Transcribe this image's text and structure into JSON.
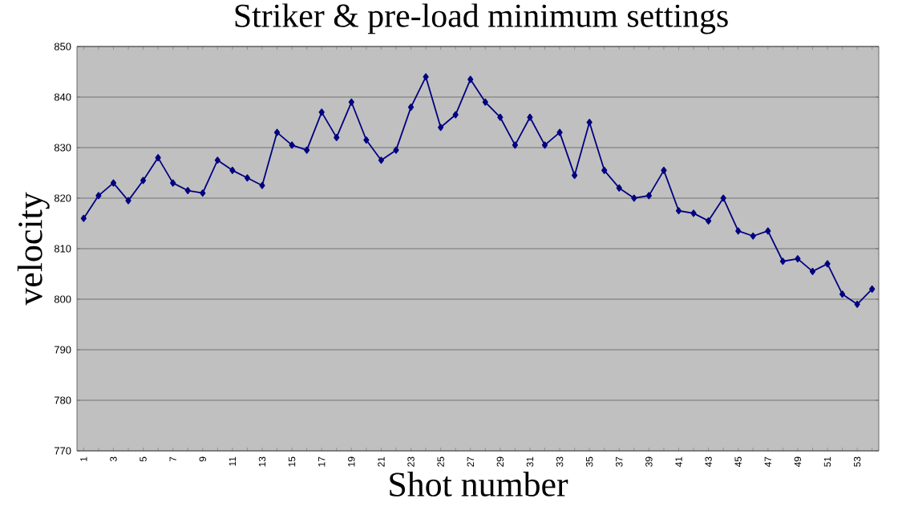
{
  "chart_data": {
    "type": "line",
    "title": "Striker & pre-load minimum settings",
    "xlabel": "Shot number",
    "ylabel": "velocity",
    "categories": [
      "1",
      null,
      "3",
      null,
      "5",
      null,
      "7",
      null,
      "9",
      null,
      "11",
      null,
      "13",
      null,
      "15",
      null,
      "17",
      null,
      "19",
      null,
      "21",
      null,
      "23",
      null,
      "25",
      null,
      "27",
      null,
      "29",
      null,
      "31",
      null,
      "33",
      null,
      "35",
      null,
      "37",
      null,
      "39",
      null,
      "41",
      null,
      "43",
      null,
      "45",
      null,
      "47",
      null,
      "49",
      null,
      "51",
      null,
      "53",
      null
    ],
    "series": [
      {
        "color": "#000080",
        "values": [
          816,
          820.5,
          823,
          819.5,
          823.5,
          828,
          823,
          821.5,
          821,
          827.5,
          825.5,
          824,
          822.5,
          833,
          830.5,
          829.5,
          837,
          832,
          839,
          831.5,
          827.5,
          829.5,
          838,
          844,
          834,
          836.5,
          843.5,
          839,
          836,
          830.5,
          836,
          830.5,
          833,
          824.5,
          835,
          825.5,
          822,
          820,
          820.5,
          825.5,
          817.5,
          817,
          815.5,
          820,
          813.5,
          812.5,
          813.5,
          807.5,
          808,
          805.5,
          807,
          801,
          799,
          802
        ]
      }
    ],
    "ylim": [
      770,
      850
    ],
    "yticks": [
      770,
      780,
      790,
      800,
      810,
      820,
      830,
      840,
      850
    ],
    "grid": "y",
    "marker": "diamond",
    "line_style": "solid"
  }
}
